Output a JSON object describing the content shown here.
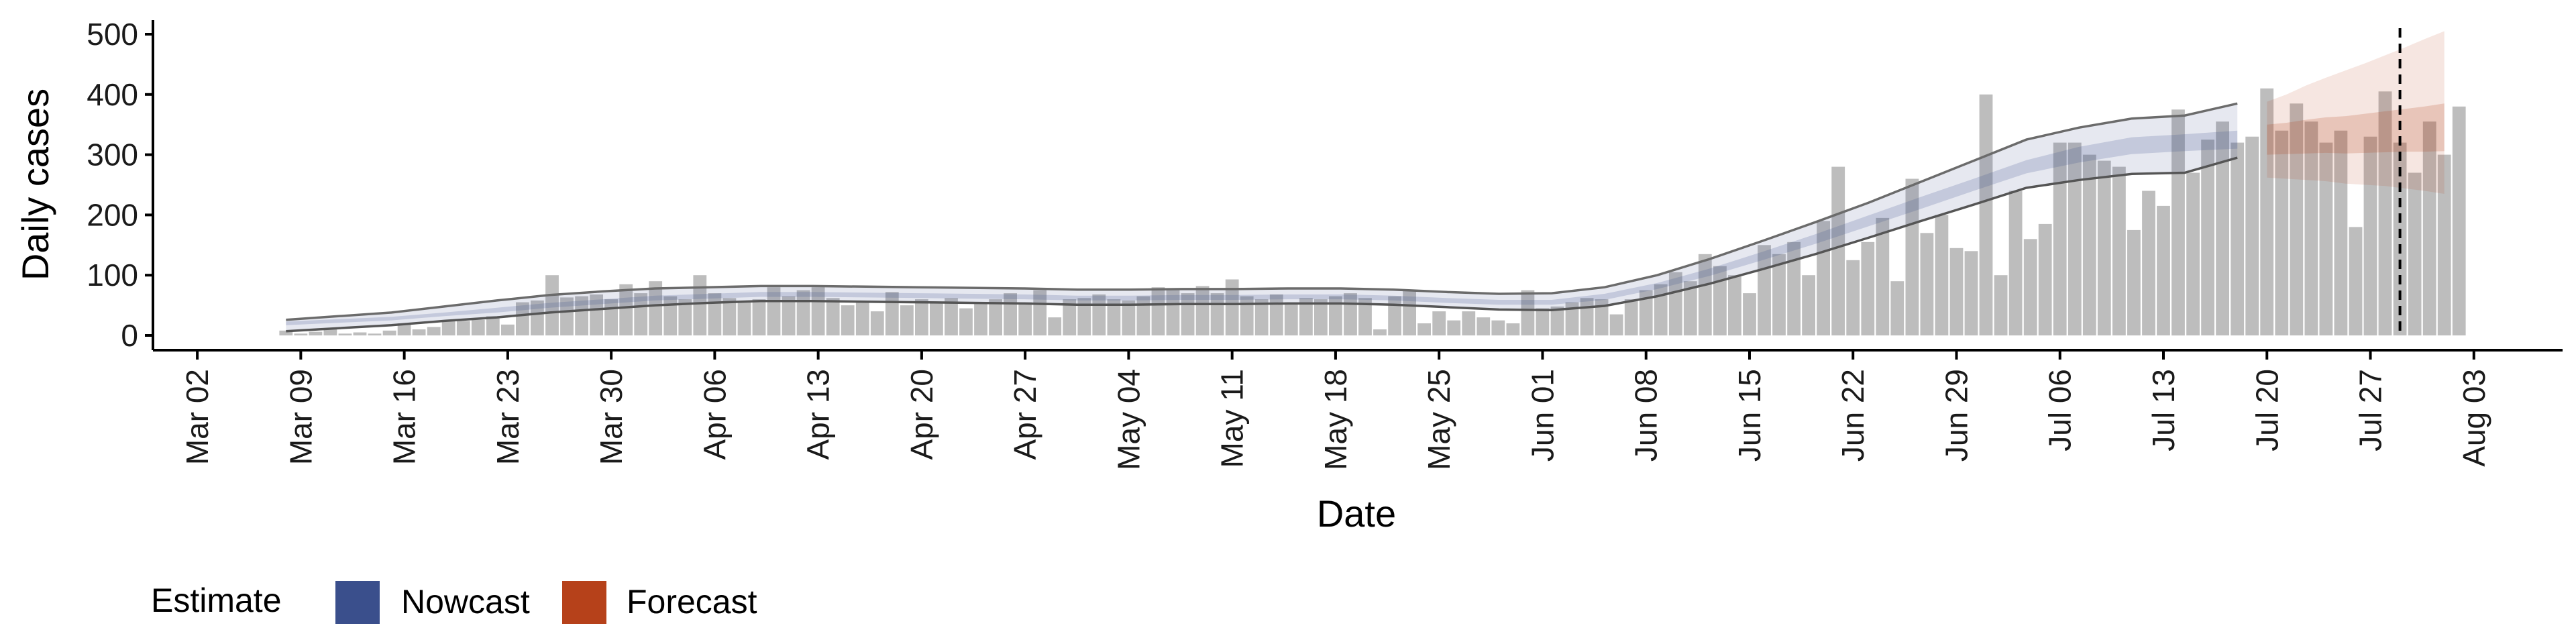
{
  "chart_data": {
    "type": "bar",
    "xlabel": "Date",
    "ylabel": "Daily cases",
    "ylim": [
      0,
      520
    ],
    "yticks": [
      0,
      100,
      200,
      300,
      400,
      500
    ],
    "xlim": [
      "2020-02-28",
      "2020-08-09"
    ],
    "xticks": [
      {
        "date": "2020-03-02",
        "label": "Mar 02"
      },
      {
        "date": "2020-03-09",
        "label": "Mar 09"
      },
      {
        "date": "2020-03-16",
        "label": "Mar 16"
      },
      {
        "date": "2020-03-23",
        "label": "Mar 23"
      },
      {
        "date": "2020-03-30",
        "label": "Mar 30"
      },
      {
        "date": "2020-04-06",
        "label": "Apr 06"
      },
      {
        "date": "2020-04-13",
        "label": "Apr 13"
      },
      {
        "date": "2020-04-20",
        "label": "Apr 20"
      },
      {
        "date": "2020-04-27",
        "label": "Apr 27"
      },
      {
        "date": "2020-05-04",
        "label": "May 04"
      },
      {
        "date": "2020-05-11",
        "label": "May 11"
      },
      {
        "date": "2020-05-18",
        "label": "May 18"
      },
      {
        "date": "2020-05-25",
        "label": "May 25"
      },
      {
        "date": "2020-06-01",
        "label": "Jun 01"
      },
      {
        "date": "2020-06-08",
        "label": "Jun 08"
      },
      {
        "date": "2020-06-15",
        "label": "Jun 15"
      },
      {
        "date": "2020-06-22",
        "label": "Jun 22"
      },
      {
        "date": "2020-06-29",
        "label": "Jun 29"
      },
      {
        "date": "2020-07-06",
        "label": "Jul 06"
      },
      {
        "date": "2020-07-13",
        "label": "Jul 13"
      },
      {
        "date": "2020-07-20",
        "label": "Jul 20"
      },
      {
        "date": "2020-07-27",
        "label": "Jul 27"
      },
      {
        "date": "2020-08-03",
        "label": "Aug 03"
      }
    ],
    "bars": {
      "start_date": "2020-03-08",
      "values": [
        8,
        3,
        6,
        10,
        3,
        5,
        3,
        8,
        20,
        10,
        14,
        25,
        24,
        26,
        32,
        18,
        55,
        58,
        100,
        63,
        65,
        68,
        60,
        85,
        70,
        90,
        65,
        60,
        100,
        70,
        62,
        55,
        60,
        80,
        65,
        75,
        80,
        62,
        50,
        55,
        40,
        72,
        50,
        60,
        55,
        62,
        45,
        55,
        60,
        70,
        55,
        75,
        30,
        60,
        62,
        68,
        60,
        58,
        65,
        80,
        78,
        70,
        82,
        70,
        93,
        65,
        60,
        68,
        55,
        62,
        60,
        65,
        70,
        62,
        10,
        65,
        75,
        20,
        40,
        25,
        40,
        30,
        25,
        20,
        75,
        45,
        48,
        55,
        62,
        60,
        35,
        60,
        75,
        85,
        105,
        90,
        135,
        115,
        100,
        70,
        150,
        135,
        155,
        100,
        190,
        280,
        125,
        155,
        195,
        90,
        260,
        170,
        200,
        145,
        140,
        400,
        100,
        240,
        160,
        185,
        320,
        320,
        300,
        290,
        280,
        175,
        240,
        215,
        375,
        270,
        325,
        355,
        320,
        330,
        410,
        340,
        385,
        355,
        320,
        340,
        180,
        330,
        405,
        320,
        270,
        355,
        300,
        380
      ],
      "color": "#bdbdbd"
    },
    "series": [
      {
        "name": "Nowcast",
        "color": "#3a4f8c",
        "start_date": "2020-03-08",
        "end_date": "2020-07-18",
        "median": [
          20,
          24,
          28,
          35,
          42,
          50,
          56,
          62,
          65,
          68,
          68,
          67,
          66,
          65,
          64,
          62,
          62,
          63,
          63,
          64,
          64,
          62,
          58,
          55,
          55,
          64,
          82,
          105,
          132,
          160,
          190,
          220,
          250,
          280,
          300,
          315,
          320,
          325
        ],
        "inner_low": [
          17,
          21,
          25,
          32,
          38,
          46,
          52,
          58,
          61,
          64,
          64,
          63,
          62,
          61,
          60,
          58,
          58,
          59,
          59,
          60,
          60,
          58,
          54,
          51,
          51,
          59,
          77,
          99,
          125,
          152,
          181,
          210,
          240,
          269,
          287,
          301,
          306,
          310
        ],
        "inner_high": [
          23,
          27,
          31,
          38,
          46,
          54,
          60,
          66,
          69,
          72,
          72,
          71,
          70,
          69,
          68,
          66,
          66,
          67,
          67,
          68,
          68,
          66,
          62,
          59,
          59,
          69,
          87,
          111,
          139,
          168,
          199,
          230,
          260,
          291,
          313,
          329,
          334,
          340
        ],
        "outer_low": [
          7,
          12,
          17,
          24,
          30,
          38,
          44,
          50,
          54,
          57,
          57,
          56,
          55,
          54,
          53,
          51,
          51,
          52,
          52,
          53,
          53,
          51,
          47,
          43,
          42,
          49,
          65,
          86,
          110,
          135,
          162,
          190,
          217,
          245,
          258,
          268,
          270,
          295
        ],
        "outer_high": [
          26,
          32,
          38,
          48,
          58,
          67,
          73,
          78,
          80,
          82,
          82,
          81,
          80,
          79,
          78,
          76,
          76,
          77,
          77,
          78,
          78,
          76,
          72,
          69,
          70,
          80,
          100,
          127,
          157,
          188,
          220,
          255,
          290,
          325,
          345,
          360,
          365,
          385
        ]
      },
      {
        "name": "Forecast",
        "color": "#b6411a",
        "start_date": "2020-07-20",
        "end_date": "2020-08-01",
        "median": [
          325,
          327,
          330,
          332,
          333,
          335,
          337,
          340,
          342,
          345
        ],
        "inner_low": [
          300,
          301,
          302,
          303,
          302,
          303,
          304,
          305,
          305,
          306
        ],
        "inner_high": [
          350,
          353,
          358,
          362,
          364,
          368,
          372,
          376,
          380,
          385
        ],
        "outer_low": [
          262,
          260,
          258,
          256,
          252,
          250,
          248,
          244,
          240,
          235
        ],
        "outer_high": [
          388,
          400,
          415,
          428,
          440,
          452,
          465,
          478,
          492,
          505
        ]
      }
    ],
    "vline_date": "2020-07-29",
    "legend": {
      "title": "Estimate",
      "position": "bottom-left",
      "items": [
        "Nowcast",
        "Forecast"
      ]
    },
    "grid": false
  }
}
